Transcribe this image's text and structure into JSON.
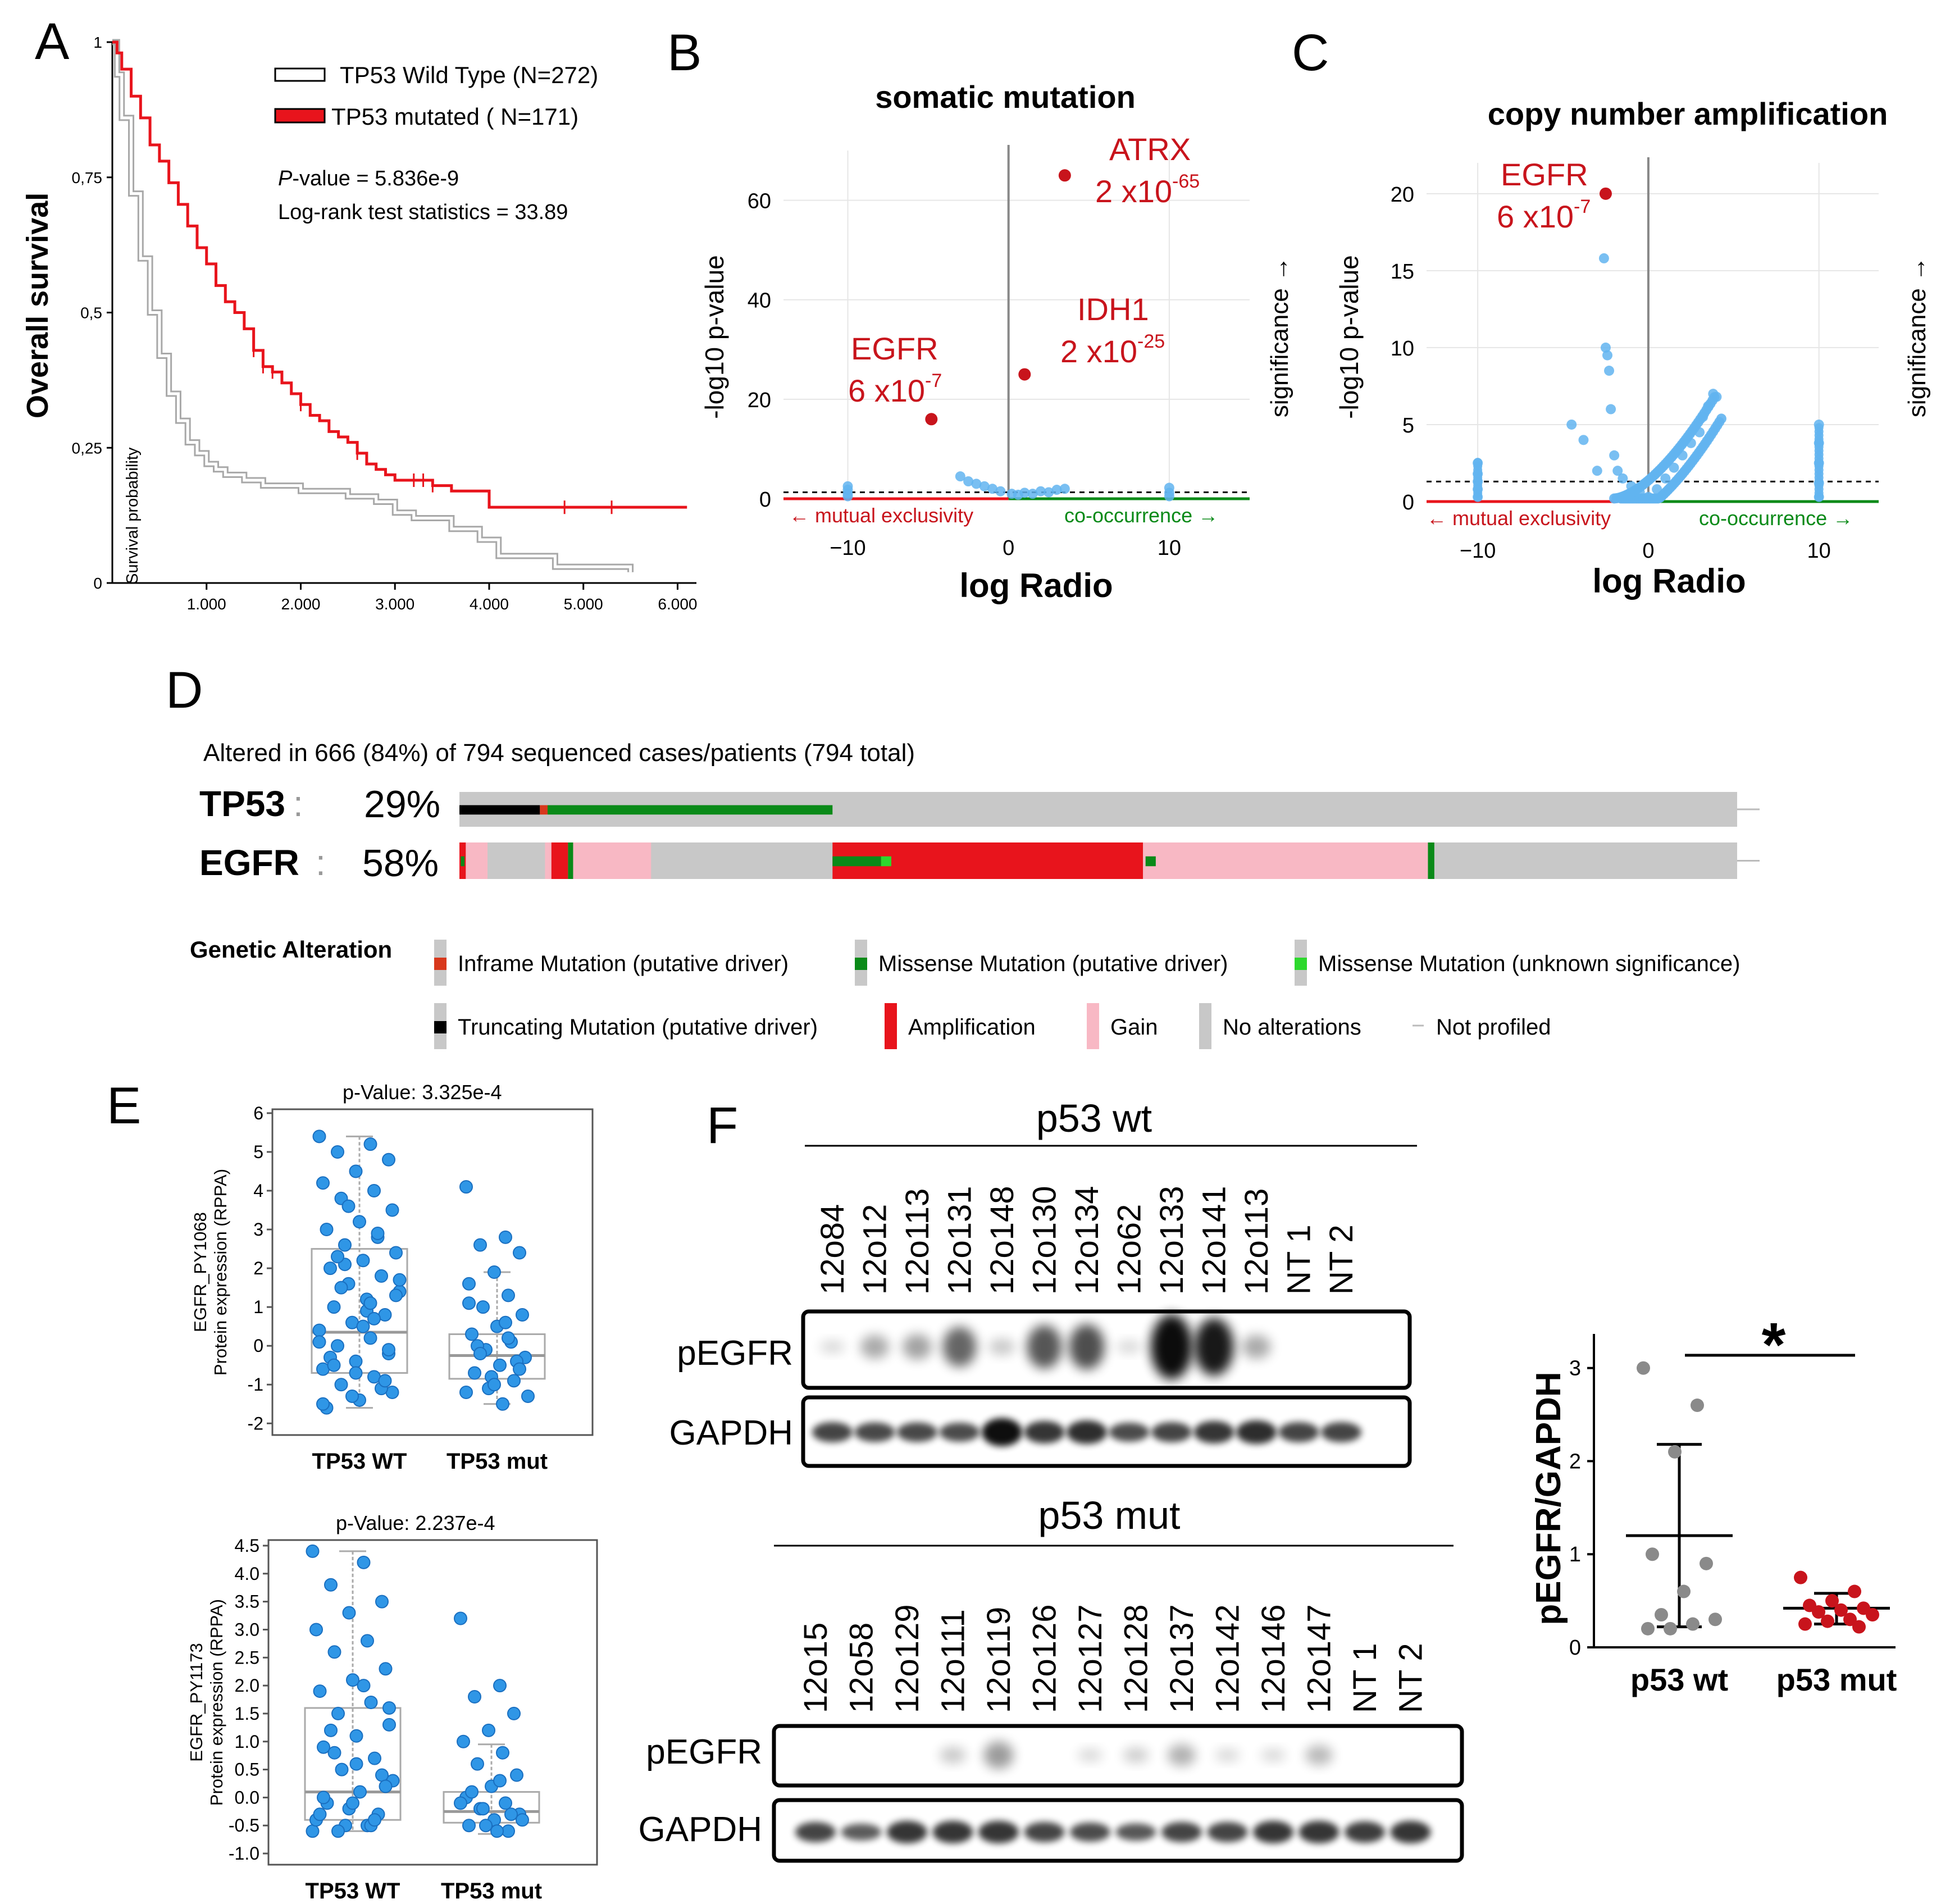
{
  "colors": {
    "red": "#e8141c",
    "darkred": "#c8141c",
    "blue": "#2f96e6",
    "lightblue": "#62b4f0",
    "green": "#0a8a18",
    "lightgreen": "#2dd82d",
    "gray": "#c8c8c8",
    "pink": "#f8b8c4",
    "black": "#000000",
    "orange": "#d8381c"
  },
  "panel_letters": {
    "a": "A",
    "b": "B",
    "c": "C",
    "d": "D",
    "e": "E",
    "f": "F"
  },
  "chart_data": [
    {
      "id": "A",
      "type": "line",
      "ylabel": "Overall survival",
      "inner_ylabel": "Survival probability",
      "yticks": [
        "0",
        "0,25",
        "0,5",
        "0,75",
        "1"
      ],
      "ytick_values": [
        0,
        0.25,
        0.5,
        0.75,
        1
      ],
      "xticks": [
        "1.000",
        "2.000",
        "3.000",
        "4.000",
        "5.000",
        "6.000"
      ],
      "xtick_values": [
        1000,
        2000,
        3000,
        4000,
        5000,
        6000
      ],
      "xlim": [
        0,
        6200
      ],
      "ylim": [
        0,
        1
      ],
      "legend": [
        {
          "label": "TP53 Wild Type (N=272)",
          "color": "#ffffff"
        },
        {
          "label": "TP53 mutated ( N=171)",
          "color": "#e8141c"
        }
      ],
      "stats": {
        "p_label": "P",
        "p_rest": "-value = 5.836e-9",
        "logrank": "Log-rank test statistics = 33.89"
      },
      "series": [
        {
          "name": "TP53 mutated",
          "color": "#e8141c",
          "x": [
            0,
            50,
            100,
            200,
            300,
            400,
            500,
            600,
            700,
            800,
            900,
            1000,
            1100,
            1200,
            1300,
            1400,
            1500,
            1600,
            1700,
            1800,
            1900,
            2000,
            2100,
            2200,
            2300,
            2400,
            2500,
            2600,
            2700,
            2800,
            2900,
            3000,
            3200,
            3400,
            3600,
            4000,
            6100
          ],
          "y": [
            1,
            0.98,
            0.95,
            0.9,
            0.86,
            0.81,
            0.78,
            0.74,
            0.7,
            0.66,
            0.62,
            0.59,
            0.55,
            0.52,
            0.5,
            0.47,
            0.43,
            0.4,
            0.39,
            0.37,
            0.35,
            0.33,
            0.31,
            0.3,
            0.28,
            0.27,
            0.26,
            0.24,
            0.22,
            0.21,
            0.2,
            0.19,
            0.19,
            0.18,
            0.17,
            0.14,
            0.14
          ]
        },
        {
          "name": "TP53 Wild Type",
          "color": "#b8b8b8",
          "x": [
            0,
            50,
            100,
            200,
            300,
            400,
            500,
            600,
            700,
            800,
            900,
            1000,
            1100,
            1200,
            1400,
            1600,
            2000,
            2500,
            2800,
            3000,
            3200,
            3600,
            3900,
            4100,
            4700,
            5500
          ],
          "y": [
            1,
            0.94,
            0.86,
            0.72,
            0.6,
            0.5,
            0.42,
            0.35,
            0.3,
            0.26,
            0.24,
            0.22,
            0.21,
            0.2,
            0.19,
            0.18,
            0.17,
            0.16,
            0.15,
            0.13,
            0.12,
            0.1,
            0.08,
            0.05,
            0.03,
            0.02
          ]
        }
      ]
    },
    {
      "id": "B",
      "type": "scatter",
      "title": "somatic mutation",
      "xlabel": "log Radio",
      "ylabel": "-log10 p-value",
      "right_label": "significance →",
      "xticks": [
        "−10",
        "0",
        "10"
      ],
      "xtick_values": [
        -10,
        0,
        10
      ],
      "yticks": [
        "0",
        "20",
        "40",
        "60"
      ],
      "ytick_values": [
        0,
        20,
        40,
        60
      ],
      "xlim": [
        -14,
        15
      ],
      "ylim": [
        0,
        70
      ],
      "threshold": 1.3,
      "bottom_left": "← mutual exclusivity",
      "bottom_right": "co-occurrence →",
      "highlights": [
        {
          "gene": "ATRX",
          "base": "2 x10",
          "exp": "-65",
          "x": 3.5,
          "y": 65
        },
        {
          "gene": "IDH1",
          "base": "2 x10",
          "exp": "-25",
          "x": 1,
          "y": 25
        },
        {
          "gene": "EGFR",
          "base": "6 x10",
          "exp": "-7",
          "x": -4.8,
          "y": 16
        }
      ],
      "points_x": [
        -10,
        -10,
        -10,
        -10,
        -3,
        -2.5,
        -2,
        -1.5,
        -1,
        -0.5,
        0.2,
        0.6,
        1,
        1.5,
        2,
        2.5,
        3,
        3.5,
        10,
        10,
        10
      ],
      "points_y": [
        0.5,
        1.0,
        1.8,
        2.5,
        4.5,
        3.5,
        3.0,
        2.5,
        2.0,
        1.5,
        1.0,
        0.8,
        1.2,
        1.0,
        1.5,
        1.3,
        1.8,
        2.0,
        0.5,
        1.2,
        2.2
      ]
    },
    {
      "id": "C",
      "type": "scatter",
      "title": "copy number amplification",
      "xlabel": "log Radio",
      "ylabel": "-log10 p-value",
      "right_label": "significance →",
      "xticks": [
        "−10",
        "0",
        "10"
      ],
      "xtick_values": [
        -10,
        0,
        10
      ],
      "yticks": [
        "0",
        "5",
        "10",
        "15",
        "20"
      ],
      "ytick_values": [
        0,
        5,
        10,
        15,
        20
      ],
      "xlim": [
        -13,
        13.5
      ],
      "ylim": [
        0,
        22
      ],
      "threshold": 1.3,
      "bottom_left": "← mutual exclusivity",
      "bottom_right": "co-occurrence →",
      "highlights": [
        {
          "gene": "EGFR",
          "base": "6 x10",
          "exp": "-7",
          "x": -2.5,
          "y": 20
        }
      ],
      "points_x": [
        -10,
        -10,
        -10,
        -10,
        -10,
        -4.5,
        -3.8,
        -3,
        -2.6,
        -2.5,
        -2.4,
        -2.3,
        -2.2,
        -2,
        -1.8,
        -1.5,
        -1,
        -0.5,
        0,
        0.5,
        1,
        1.5,
        2,
        2.5,
        3,
        3.2,
        3.5,
        3.8,
        4,
        10,
        10,
        10,
        10,
        10
      ],
      "points_y": [
        0.3,
        0.8,
        1.3,
        1.8,
        2.5,
        5,
        4,
        2,
        15.8,
        10,
        9.5,
        8.5,
        6,
        3,
        2,
        1.5,
        1,
        0.6,
        0.3,
        0.8,
        1.5,
        2.2,
        3,
        3.8,
        4.5,
        5.5,
        6.2,
        7,
        6.8,
        0.3,
        1.2,
        2.5,
        3.8,
        5
      ]
    },
    {
      "id": "D",
      "type": "table",
      "title": "Altered in 666 (84%) of 794 sequenced cases/patients (794 total)",
      "rows": [
        {
          "gene": "TP53",
          "colon": ":",
          "pct": "29%",
          "segments": [
            {
              "start": 0,
              "end": 0.063,
              "type": "trunc"
            },
            {
              "start": 0.063,
              "end": 0.069,
              "type": "inframe"
            },
            {
              "start": 0.069,
              "end": 0.292,
              "type": "missense"
            }
          ]
        },
        {
          "gene": "EGFR",
          "colon": ":",
          "pct": "58%",
          "segments": [
            {
              "start": 0,
              "end": 0.005,
              "type": "amp"
            },
            {
              "start": 0.005,
              "end": 0.022,
              "type": "gain"
            },
            {
              "start": 0.067,
              "end": 0.072,
              "type": "gain"
            },
            {
              "start": 0.072,
              "end": 0.085,
              "type": "amp"
            },
            {
              "start": 0.085,
              "end": 0.089,
              "type": "missense"
            },
            {
              "start": 0.089,
              "end": 0.15,
              "type": "gain"
            },
            {
              "start": 0.292,
              "end": 0.535,
              "type": "amp"
            },
            {
              "start": 0.535,
              "end": 0.758,
              "type": "gain"
            },
            {
              "start": 0.758,
              "end": 0.763,
              "type": "missense"
            }
          ],
          "marks": [
            {
              "start": 0.001,
              "end": 0.004,
              "type": "missense"
            },
            {
              "start": 0.292,
              "end": 0.33,
              "type": "missense"
            },
            {
              "start": 0.33,
              "end": 0.338,
              "type": "lightmissense"
            },
            {
              "start": 0.537,
              "end": 0.545,
              "type": "missense"
            }
          ]
        }
      ],
      "legend_title": "Genetic Alteration",
      "legend": [
        {
          "label": "Inframe Mutation (putative driver)",
          "type": "inframe"
        },
        {
          "label": "Missense Mutation (putative driver)",
          "type": "missense"
        },
        {
          "label": "Missense Mutation (unknown significance)",
          "type": "lightmissense"
        },
        {
          "label": "Truncating Mutation (putative driver)",
          "type": "trunc"
        },
        {
          "label": "Amplification",
          "type": "amp"
        },
        {
          "label": "Gain",
          "type": "gain"
        },
        {
          "label": "No alterations",
          "type": "none"
        },
        {
          "label": "Not profiled",
          "type": "notprofiled"
        }
      ]
    },
    {
      "id": "E1",
      "type": "scatter",
      "title": "p-Value: 3.325e-4",
      "ylabel_line1": "EGFR_PY1068",
      "ylabel_line2": "Protein expression (RPPA)",
      "categories": [
        "TP53 WT",
        "TP53 mut"
      ],
      "yticks": [
        "-2",
        "-1",
        "0",
        "1",
        "2",
        "3",
        "4",
        "5",
        "6"
      ],
      "ytick_values": [
        -2,
        -1,
        0,
        1,
        2,
        3,
        4,
        5,
        6
      ],
      "ylim": [
        -2.3,
        6.1
      ],
      "boxes": [
        {
          "q1": -0.7,
          "median": 0.35,
          "q3": 2.5,
          "whisker_low": -1.6,
          "whisker_high": 5.4
        },
        {
          "q1": -0.85,
          "median": -0.25,
          "q3": 0.3,
          "whisker_low": -1.5,
          "whisker_high": 1.9
        }
      ],
      "group_values": [
        [
          5.4,
          5.2,
          5.0,
          4.8,
          4.5,
          4.2,
          4.0,
          3.8,
          3.5,
          3.2,
          3.0,
          2.8,
          2.6,
          2.4,
          2.2,
          2.0,
          1.8,
          1.6,
          1.4,
          1.2,
          1.0,
          0.8,
          0.6,
          0.4,
          0.2,
          0.0,
          -0.2,
          -0.4,
          -0.6,
          -0.8,
          -1.0,
          -1.2,
          -1.4,
          -1.6,
          2.9,
          2.1,
          1.3,
          0.5,
          -0.3,
          -1.1,
          3.6,
          1.7,
          0.9,
          -0.5,
          -0.9,
          -1.3,
          0.1,
          1.1,
          2.3,
          -0.1,
          -0.7,
          -1.5,
          0.7,
          1.5
        ],
        [
          4.1,
          2.8,
          2.6,
          2.4,
          1.9,
          1.6,
          1.3,
          1.0,
          0.8,
          0.5,
          0.3,
          0.1,
          -0.1,
          -0.3,
          -0.5,
          -0.7,
          -0.9,
          -1.1,
          -1.3,
          -1.5,
          0.0,
          -0.4,
          -0.8,
          -1.2,
          0.6,
          -0.2,
          -0.6,
          -1.0,
          1.1,
          0.2
        ]
      ]
    },
    {
      "id": "E2",
      "type": "scatter",
      "title": "p-Value: 2.237e-4",
      "ylabel_line1": "EGFR_PY1173",
      "ylabel_line2": "Protein expression (RPPA)",
      "categories": [
        "TP53 WT",
        "TP53 mut"
      ],
      "yticks": [
        "-1.0",
        "-0.5",
        "0.0",
        "0.5",
        "1.0",
        "1.5",
        "2.0",
        "2.5",
        "3.0",
        "3.5",
        "4.0",
        "4.5"
      ],
      "ytick_values": [
        -1.0,
        -0.5,
        0.0,
        0.5,
        1.0,
        1.5,
        2.0,
        2.5,
        3.0,
        3.5,
        4.0,
        4.5
      ],
      "ylim": [
        -1.2,
        4.6
      ],
      "boxes": [
        {
          "q1": -0.4,
          "median": 0.1,
          "q3": 1.6,
          "whisker_low": -0.6,
          "whisker_high": 4.4
        },
        {
          "q1": -0.45,
          "median": -0.25,
          "q3": 0.1,
          "whisker_low": -0.65,
          "whisker_high": 0.95
        }
      ],
      "group_values": [
        [
          4.4,
          4.2,
          3.8,
          3.5,
          3.3,
          3.0,
          2.8,
          2.6,
          2.3,
          2.1,
          1.9,
          1.7,
          1.5,
          1.3,
          1.1,
          0.9,
          0.7,
          0.5,
          0.3,
          0.1,
          -0.1,
          -0.3,
          -0.5,
          -0.6,
          2.0,
          1.2,
          0.4,
          -0.2,
          -0.4,
          -0.5,
          0.8,
          0.2,
          -0.1,
          -0.3,
          -0.5,
          -0.6,
          1.6,
          0.6,
          0.0,
          -0.4
        ],
        [
          3.2,
          2.0,
          1.8,
          1.5,
          1.2,
          1.0,
          0.8,
          0.6,
          0.4,
          0.2,
          0.0,
          -0.1,
          -0.2,
          -0.3,
          -0.4,
          -0.5,
          -0.6,
          -0.2,
          -0.4,
          -0.6,
          0.1,
          -0.3,
          -0.5,
          -0.1,
          0.3
        ]
      ]
    },
    {
      "id": "F_quant",
      "type": "scatter",
      "ylabel": "pEGFR/GAPDH",
      "categories": [
        "p53 wt",
        "p53 mut"
      ],
      "yticks": [
        "0",
        "1",
        "2",
        "3"
      ],
      "ytick_values": [
        0,
        1,
        2,
        3
      ],
      "ylim": [
        0,
        3.3
      ],
      "significance": "*",
      "groups": [
        {
          "mean": 1.2,
          "sd_low": 0.22,
          "sd_high": 2.18,
          "color": "#8a8a8a",
          "values": [
            3.0,
            2.6,
            2.1,
            1.0,
            0.9,
            0.6,
            0.35,
            0.3,
            0.25,
            0.2,
            0.2
          ]
        },
        {
          "mean": 0.42,
          "sd_low": 0.25,
          "sd_high": 0.58,
          "color": "#c8141c",
          "values": [
            0.75,
            0.6,
            0.5,
            0.45,
            0.42,
            0.4,
            0.38,
            0.35,
            0.3,
            0.28,
            0.25,
            0.22
          ]
        }
      ]
    }
  ],
  "blots": {
    "wt": {
      "title": "p53 wt",
      "lanes": [
        "12o84",
        "12o12",
        "12o113",
        "12o131",
        "12o148",
        "12o130",
        "12o134",
        "12o62",
        "12o133",
        "12o141",
        "12o113",
        "NT 1",
        "NT 2"
      ],
      "rows": [
        "pEGFR",
        "GAPDH"
      ]
    },
    "mut": {
      "title": "p53 mut",
      "lanes": [
        "12o15",
        "12o58",
        "12o129",
        "12o111",
        "12o119",
        "12o126",
        "12o127",
        "12o128",
        "12o137",
        "12o142",
        "12o146",
        "12o147",
        "NT 1",
        "NT 2"
      ],
      "rows": [
        "pEGFR",
        "GAPDH"
      ]
    }
  }
}
